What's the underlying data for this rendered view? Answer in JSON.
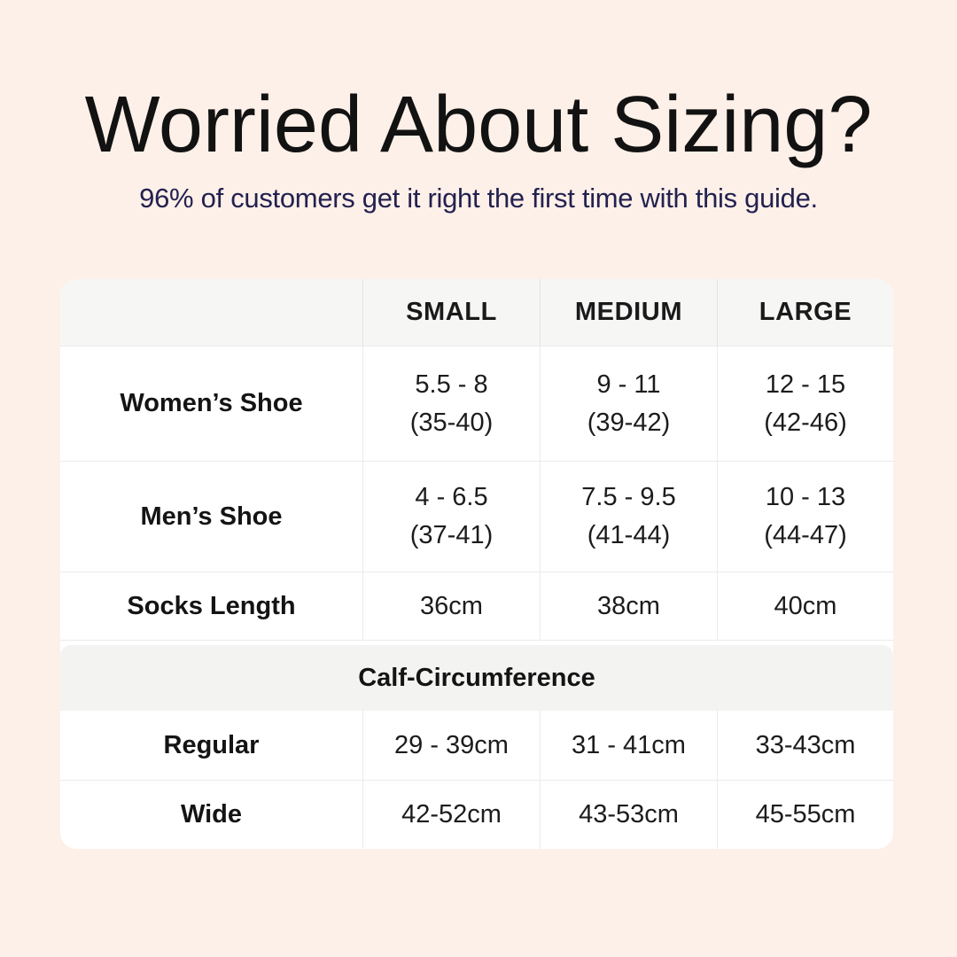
{
  "header": {
    "title": "Worried About Sizing?",
    "subtitle": "96% of customers get it right the first time with this guide."
  },
  "colors": {
    "page_background": "#fdf0e8",
    "table_background": "#ffffff",
    "header_band": "#f6f6f5",
    "section_band": "#f3f3f2",
    "title_text": "#121212",
    "subtitle_text": "#232150",
    "divider": "#ebebea"
  },
  "table": {
    "columns": [
      "",
      "SMALL",
      "MEDIUM",
      "LARGE"
    ],
    "rows": [
      {
        "label": "Women’s Shoe",
        "cells": [
          [
            "5.5 - 8",
            "(35-40)"
          ],
          [
            "9 - 11",
            "(39-42)"
          ],
          [
            "12 - 15",
            "(42-46)"
          ]
        ]
      },
      {
        "label": "Men’s Shoe",
        "cells": [
          [
            "4 - 6.5",
            "(37-41)"
          ],
          [
            "7.5 - 9.5",
            "(41-44)"
          ],
          [
            "10 - 13",
            "(44-47)"
          ]
        ]
      },
      {
        "label": "Socks Length",
        "cells": [
          [
            "36cm"
          ],
          [
            "38cm"
          ],
          [
            "40cm"
          ]
        ]
      }
    ],
    "section": {
      "title": "Calf-Circumference"
    },
    "section_rows": [
      {
        "label": "Regular",
        "cells": [
          [
            "29 - 39cm"
          ],
          [
            "31 - 41cm"
          ],
          [
            "33-43cm"
          ]
        ]
      },
      {
        "label": "Wide",
        "cells": [
          [
            "42-52cm"
          ],
          [
            "43-53cm"
          ],
          [
            "45-55cm"
          ]
        ]
      }
    ]
  }
}
